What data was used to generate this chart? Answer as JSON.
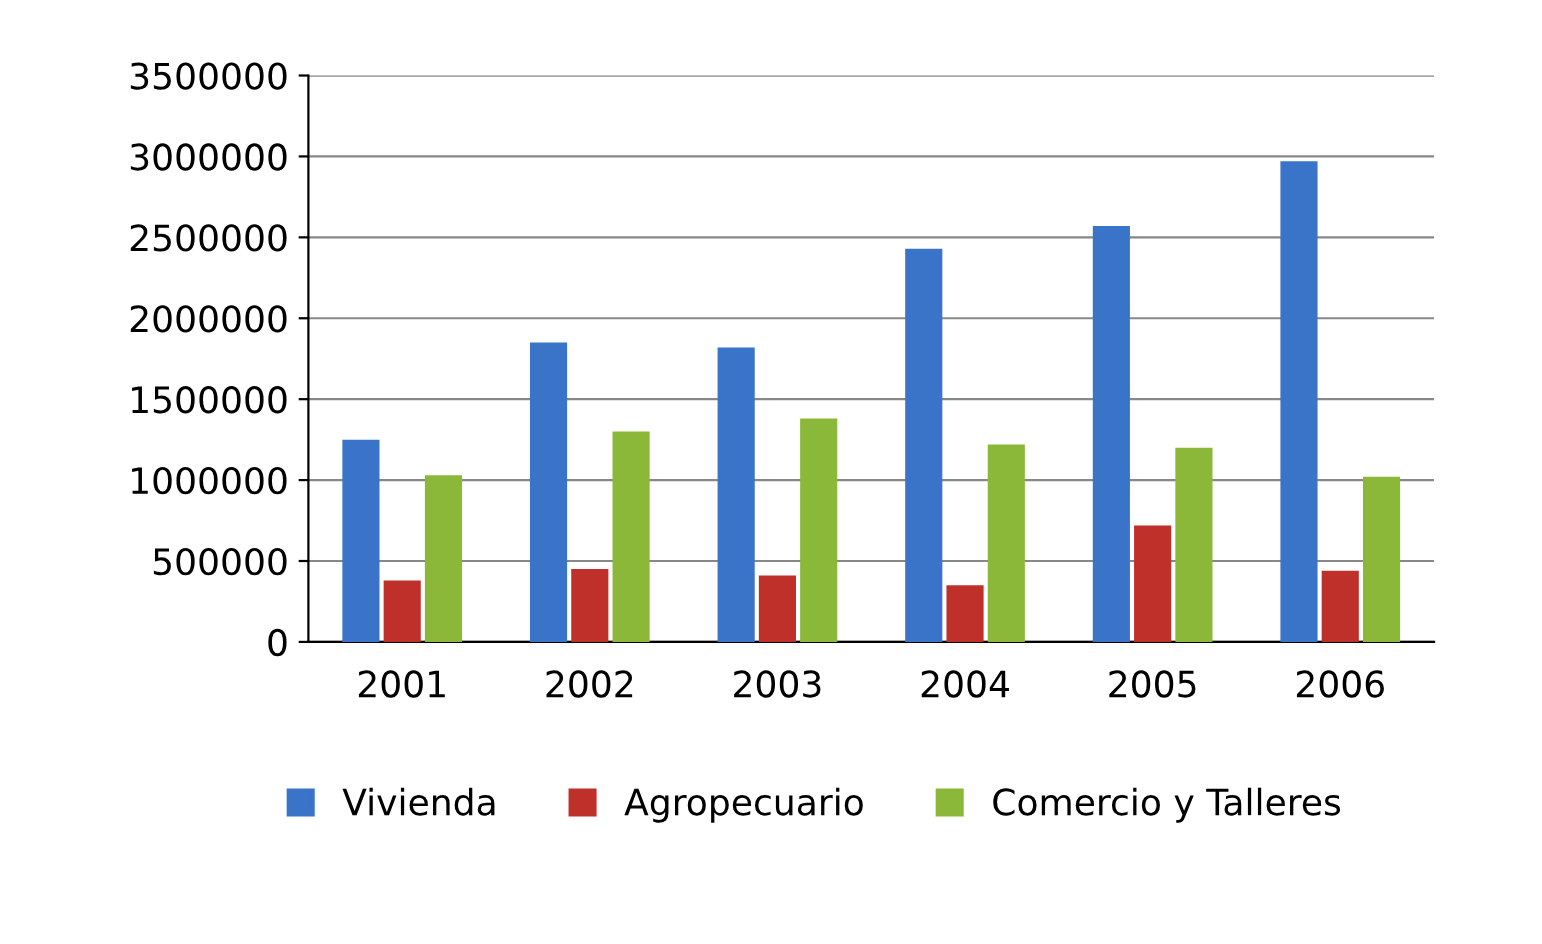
{
  "chart_data": {
    "type": "bar",
    "categories": [
      "2001",
      "2002",
      "2003",
      "2004",
      "2005",
      "2006"
    ],
    "series": [
      {
        "name": "Vivienda",
        "color": "#3a74c8",
        "values": [
          1250000,
          1850000,
          1820000,
          2430000,
          2570000,
          2970000
        ]
      },
      {
        "name": "Agropecuario",
        "color": "#c0302b",
        "values": [
          380000,
          450000,
          410000,
          350000,
          720000,
          440000
        ]
      },
      {
        "name": "Comercio y Talleres",
        "color": "#8cb83a",
        "values": [
          1030000,
          1300000,
          1380000,
          1220000,
          1200000,
          1020000
        ]
      }
    ],
    "ylim": [
      0,
      3500000
    ],
    "yticks": [
      0,
      500000,
      1000000,
      1500000,
      2000000,
      2500000,
      3000000,
      3500000
    ],
    "grid": "y",
    "legend": "bottom"
  }
}
